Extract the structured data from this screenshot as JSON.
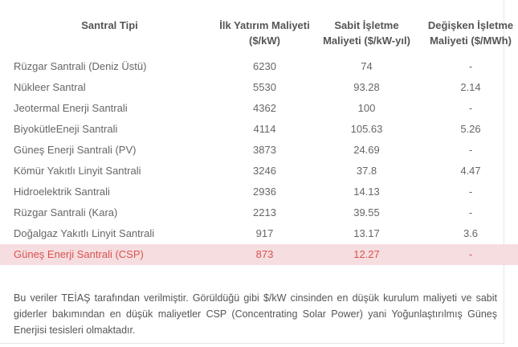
{
  "table": {
    "headers": {
      "type": "Santral Tipi",
      "investment_line1": "İlk Yatırım Maliyeti",
      "investment_line2": "($/kW)",
      "fixed_line1": "Sabit İşletme",
      "fixed_line2": "Maliyeti ($/kW-yıl)",
      "variable_line1": "Değişken İşletme",
      "variable_line2": "Maliyeti ($/MWh)"
    },
    "rows": [
      {
        "type": "Rüzgar Santrali (Deniz Üstü)",
        "investment": "6230",
        "fixed": "74",
        "variable": "-"
      },
      {
        "type": "Nükleer Santral",
        "investment": "5530",
        "fixed": "93.28",
        "variable": "2.14"
      },
      {
        "type": "Jeotermal Enerji Santrali",
        "investment": "4362",
        "fixed": "100",
        "variable": "-"
      },
      {
        "type": "BiyokütleEneji Santrali",
        "investment": "4114",
        "fixed": "105.63",
        "variable": "5.26"
      },
      {
        "type": "Güneş Enerji Santrali (PV)",
        "investment": "3873",
        "fixed": "24.69",
        "variable": "-"
      },
      {
        "type": "Kömür Yakıtlı Linyit Santrali",
        "investment": "3246",
        "fixed": "37.8",
        "variable": "4.47"
      },
      {
        "type": "Hidroelektrik Santrali",
        "investment": "2936",
        "fixed": "14.13",
        "variable": "-"
      },
      {
        "type": "Rüzgar Santrali (Kara)",
        "investment": "2213",
        "fixed": "39.55",
        "variable": "-"
      },
      {
        "type": "Doğalgaz Yakıtlı Linyit Santrali",
        "investment": "917",
        "fixed": "13.17",
        "variable": "3.6"
      },
      {
        "type": "Güneş Enerji Santrali (CSP)",
        "investment": "873",
        "fixed": "12.27",
        "variable": "-"
      }
    ],
    "highlight_color": "#f5dde0",
    "highlight_text_color": "#d9534f"
  },
  "note": "Bu veriler TEİAŞ tarafından verilmiştir. Görüldüğü gibi $/kW cinsinden en düşük kurulum maliyeti ve sabit giderler bakımından en düşük maliyetler CSP (Concentrating Solar Power) yani Yoğunlaştırılmış Güneş Enerjisi tesisleri olmaktadır."
}
